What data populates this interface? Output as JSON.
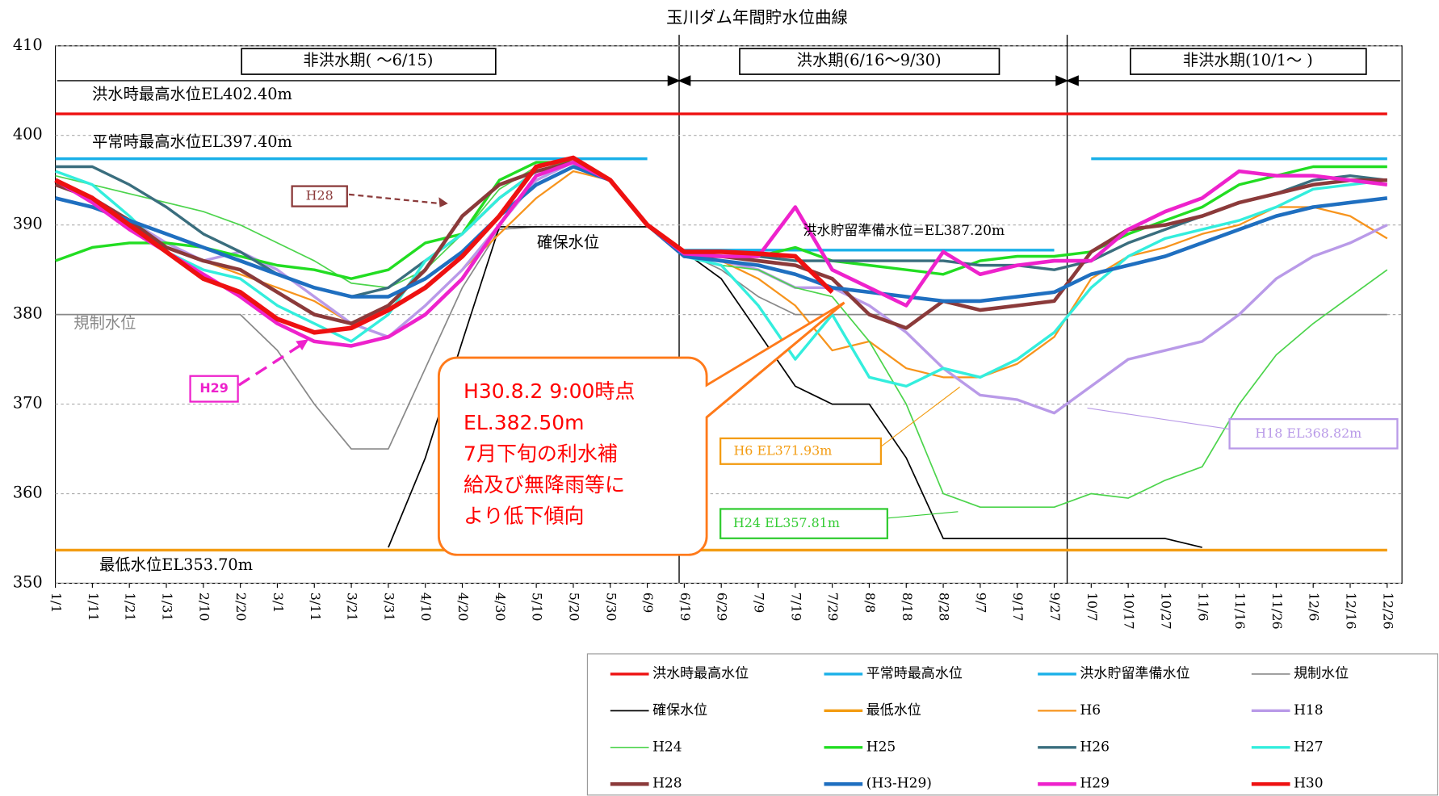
{
  "chart_data": {
    "type": "line",
    "title": "玉川ダム年間貯水位曲線",
    "xlim": [
      0,
      364
    ],
    "ylim": [
      350,
      410
    ],
    "yticks": [
      350,
      360,
      370,
      380,
      390,
      400,
      410
    ],
    "grid": true,
    "xticks": [
      {
        "value": 0,
        "label": "1/1"
      },
      {
        "value": 10,
        "label": "1/11"
      },
      {
        "value": 20,
        "label": "1/21"
      },
      {
        "value": 30,
        "label": "1/31"
      },
      {
        "value": 40,
        "label": "2/10"
      },
      {
        "value": 50,
        "label": "2/20"
      },
      {
        "value": 60,
        "label": "3/1"
      },
      {
        "value": 70,
        "label": "3/11"
      },
      {
        "value": 80,
        "label": "3/21"
      },
      {
        "value": 90,
        "label": "3/31"
      },
      {
        "value": 100,
        "label": "4/10"
      },
      {
        "value": 110,
        "label": "4/20"
      },
      {
        "value": 120,
        "label": "4/30"
      },
      {
        "value": 130,
        "label": "5/10"
      },
      {
        "value": 140,
        "label": "5/20"
      },
      {
        "value": 150,
        "label": "5/30"
      },
      {
        "value": 160,
        "label": "6/9"
      },
      {
        "value": 170,
        "label": "6/19"
      },
      {
        "value": 180,
        "label": "6/29"
      },
      {
        "value": 190,
        "label": "7/9"
      },
      {
        "value": 200,
        "label": "7/19"
      },
      {
        "value": 210,
        "label": "7/29"
      },
      {
        "value": 220,
        "label": "8/8"
      },
      {
        "value": 230,
        "label": "8/18"
      },
      {
        "value": 240,
        "label": "8/28"
      },
      {
        "value": 250,
        "label": "9/7"
      },
      {
        "value": 260,
        "label": "9/17"
      },
      {
        "value": 270,
        "label": "9/27"
      },
      {
        "value": 280,
        "label": "10/7"
      },
      {
        "value": 290,
        "label": "10/17"
      },
      {
        "value": 300,
        "label": "10/27"
      },
      {
        "value": 310,
        "label": "11/6"
      },
      {
        "value": 320,
        "label": "11/16"
      },
      {
        "value": 330,
        "label": "11/26"
      },
      {
        "value": 340,
        "label": "12/6"
      },
      {
        "value": 350,
        "label": "12/16"
      },
      {
        "value": 360,
        "label": "12/26"
      }
    ],
    "x": [
      0,
      10,
      20,
      30,
      40,
      50,
      60,
      70,
      80,
      90,
      100,
      110,
      120,
      130,
      140,
      150,
      160,
      170,
      180,
      190,
      200,
      210,
      220,
      230,
      240,
      250,
      260,
      270,
      280,
      290,
      300,
      310,
      320,
      330,
      340,
      350,
      360
    ],
    "series": [
      {
        "name": "洪水時最高水位",
        "color": "#ee1111",
        "width": 3,
        "values": [
          402.4,
          402.4,
          402.4,
          402.4,
          402.4,
          402.4,
          402.4,
          402.4,
          402.4,
          402.4,
          402.4,
          402.4,
          402.4,
          402.4,
          402.4,
          402.4,
          402.4,
          402.4,
          402.4,
          402.4,
          402.4,
          402.4,
          402.4,
          402.4,
          402.4,
          402.4,
          402.4,
          402.4,
          402.4,
          402.4,
          402.4,
          402.4,
          402.4,
          402.4,
          402.4,
          402.4,
          402.4
        ]
      },
      {
        "name": "平常時最高水位",
        "color": "#1ab0e8",
        "width": 3,
        "values": [
          397.4,
          397.4,
          397.4,
          397.4,
          397.4,
          397.4,
          397.4,
          397.4,
          397.4,
          397.4,
          397.4,
          397.4,
          397.4,
          397.4,
          397.4,
          397.4,
          397.4,
          null,
          null,
          null,
          null,
          null,
          null,
          null,
          null,
          null,
          null,
          null,
          397.4,
          397.4,
          397.4,
          397.4,
          397.4,
          397.4,
          397.4,
          397.4,
          397.4
        ]
      },
      {
        "name": "洪水貯留準備水位",
        "color": "#1ab0e8",
        "width": 3,
        "values": [
          null,
          null,
          null,
          null,
          null,
          null,
          null,
          null,
          null,
          null,
          null,
          null,
          null,
          null,
          null,
          null,
          null,
          387.2,
          387.2,
          387.2,
          387.2,
          387.2,
          387.2,
          387.2,
          387.2,
          387.2,
          387.2,
          387.2,
          null,
          null,
          null,
          null,
          null,
          null,
          null,
          null,
          null
        ]
      },
      {
        "name": "規制水位",
        "color": "#888888",
        "width": 1.5,
        "values": [
          380,
          380,
          380,
          380,
          380,
          380,
          376,
          370,
          365,
          365,
          374,
          383,
          389.5,
          389.8,
          389.8,
          389.8,
          389.8,
          387,
          385,
          382,
          380,
          380,
          380,
          380,
          380,
          380,
          380,
          380,
          380,
          380,
          380,
          380,
          380,
          380,
          380,
          380,
          380
        ]
      },
      {
        "name": "確保水位",
        "color": "#000000",
        "width": 1.5,
        "values": [
          null,
          null,
          null,
          null,
          null,
          null,
          null,
          null,
          null,
          354,
          364,
          377,
          389.8,
          389.8,
          389.8,
          389.8,
          389.8,
          387,
          384,
          378,
          372,
          370,
          370,
          364,
          355,
          355,
          355,
          355,
          355,
          355,
          355,
          354,
          null,
          null,
          null,
          null,
          null
        ]
      },
      {
        "name": "最低水位",
        "color": "#f39c12",
        "width": 3,
        "values": [
          353.7,
          353.7,
          353.7,
          353.7,
          353.7,
          353.7,
          353.7,
          353.7,
          353.7,
          353.7,
          353.7,
          353.7,
          353.7,
          353.7,
          353.7,
          353.7,
          353.7,
          353.7,
          353.7,
          353.7,
          353.7,
          353.7,
          353.7,
          353.7,
          353.7,
          353.7,
          353.7,
          353.7,
          353.7,
          353.7,
          353.7,
          353.7,
          353.7,
          353.7,
          353.7,
          353.7,
          353.7
        ]
      },
      {
        "name": "H6",
        "color": "#f7941d",
        "width": 2,
        "values": [
          394.5,
          393,
          390.5,
          388,
          386,
          384.5,
          383,
          381.5,
          379,
          377.5,
          381,
          385,
          389,
          393,
          396,
          395,
          390,
          386.5,
          386,
          384,
          381,
          376,
          377,
          374,
          373,
          373,
          374.5,
          377.5,
          384,
          386.5,
          387.5,
          389,
          390,
          392,
          392,
          391,
          388.5
        ]
      },
      {
        "name": "H18",
        "color": "#b99ae8",
        "width": 3,
        "values": [
          394.5,
          393,
          390.5,
          388,
          386,
          387,
          385,
          382,
          379,
          377.5,
          381,
          385,
          390,
          395,
          397,
          395,
          390,
          386.5,
          386,
          385,
          383,
          383,
          381,
          378,
          374,
          371,
          370.5,
          369,
          372,
          375,
          376,
          377,
          380,
          384,
          386.5,
          388,
          390
        ]
      },
      {
        "name": "H24",
        "color": "#4cd44c",
        "width": 1.5,
        "values": [
          395.5,
          394.5,
          393.5,
          392.5,
          391.5,
          390,
          388,
          386,
          383.5,
          383,
          385,
          389,
          394,
          396.5,
          397,
          395,
          390,
          386.5,
          385.5,
          385,
          383,
          382,
          377,
          370,
          360,
          358.5,
          358.5,
          358.5,
          360,
          359.5,
          361.5,
          363,
          370,
          375.5,
          379,
          382,
          385
        ]
      },
      {
        "name": "H25",
        "color": "#22dd22",
        "width": 3,
        "values": [
          386,
          387.5,
          388,
          388,
          387.5,
          386.5,
          385.5,
          385,
          384,
          385,
          388,
          389,
          395,
          397,
          397,
          395,
          390,
          386.8,
          386.5,
          386.5,
          387.5,
          386,
          385.5,
          385,
          384.5,
          386,
          386.5,
          386.5,
          387,
          389,
          390.5,
          392,
          394.5,
          395.5,
          396.5,
          396.5,
          396.5
        ]
      },
      {
        "name": "H26",
        "color": "#3a6e7e",
        "width": 3,
        "values": [
          396.5,
          396.5,
          394.5,
          392,
          389,
          387,
          384.5,
          383,
          382,
          383,
          386,
          389,
          393,
          396,
          397,
          395,
          390,
          387,
          386.5,
          386.5,
          386,
          386,
          386,
          386,
          386,
          385.5,
          385.5,
          385,
          386,
          388,
          389.5,
          391,
          392.5,
          393.5,
          395,
          395.5,
          395
        ]
      },
      {
        "name": "H27",
        "color": "#33eedd",
        "width": 3,
        "values": [
          396,
          394.5,
          391,
          387,
          385,
          384,
          381,
          379,
          377,
          380,
          386,
          389,
          393,
          396,
          397,
          395,
          390,
          386.5,
          385.5,
          381,
          375,
          380,
          373,
          372,
          374,
          373,
          375,
          378,
          383,
          386.5,
          388.5,
          389.5,
          390.5,
          392,
          394,
          394.5,
          395
        ]
      },
      {
        "name": "H28",
        "color": "#8b3a3a",
        "width": 4,
        "values": [
          394.5,
          393,
          390.5,
          387.5,
          386,
          385,
          382.5,
          380,
          379,
          381,
          385,
          391,
          394.5,
          396,
          397,
          395,
          390,
          386.5,
          386.5,
          386,
          385.5,
          384,
          380,
          378.5,
          381.5,
          380.5,
          381,
          381.5,
          387,
          389.5,
          390,
          391,
          392.5,
          393.5,
          394.5,
          395,
          395
        ]
      },
      {
        "name": "(H3-H29)",
        "color": "#1f6fc0",
        "width": 4,
        "values": [
          393,
          392,
          390.5,
          389,
          387.5,
          386,
          384.5,
          383,
          382,
          382,
          384,
          387,
          391,
          394.5,
          396.5,
          395,
          390,
          386.5,
          386,
          385.5,
          384.5,
          383,
          382.5,
          382,
          381.5,
          381.5,
          382,
          382.5,
          384.5,
          385.5,
          386.5,
          388,
          389.5,
          391,
          392,
          392.5,
          393
        ]
      },
      {
        "name": "H29",
        "color": "#ee22cc",
        "width": 4,
        "values": [
          395,
          392.5,
          389.5,
          387,
          384.5,
          382,
          379,
          377,
          376.5,
          377.5,
          380,
          384,
          390,
          395.5,
          397,
          395,
          390,
          386.8,
          386.5,
          386.5,
          392,
          385,
          383,
          381,
          387,
          384.5,
          385.5,
          386,
          386,
          389.5,
          391.5,
          393,
          396,
          395.5,
          395.5,
          395,
          394.5
        ]
      },
      {
        "name": "H30",
        "color": "#ee1111",
        "width": 5,
        "values": [
          395,
          393,
          390,
          387,
          384,
          382.5,
          379.5,
          378,
          378.5,
          380.5,
          383,
          386.5,
          391,
          396.5,
          397.5,
          395,
          390,
          387,
          387,
          386.8,
          386.5,
          382.5,
          null,
          null,
          null,
          null,
          null,
          null,
          null,
          null,
          null,
          null,
          null,
          null,
          null,
          null,
          null
        ]
      }
    ],
    "annotations": [
      {
        "text": "非洪水期( ～6/15)",
        "color": "#000000"
      },
      {
        "text": "洪水期(6/16～9/30)",
        "color": "#000000"
      },
      {
        "text": "非洪水期(10/1～ )",
        "color": "#000000"
      },
      {
        "text": "洪水時最高水位EL402.40m",
        "color": "#000000"
      },
      {
        "text": "平常時最高水位EL397.40m",
        "color": "#000000"
      },
      {
        "text": "洪水貯留準備水位=EL387.20m",
        "color": "#000000"
      },
      {
        "text": "確保水位",
        "color": "#000000"
      },
      {
        "text": "規制水位",
        "color": "#888888"
      },
      {
        "text": "最低水位EL353.70m",
        "color": "#000000"
      },
      {
        "text": "H28",
        "color": "#8b3a3a"
      },
      {
        "text": "H29",
        "color": "#ee22cc"
      },
      {
        "text": "H6 EL371.93m",
        "color": "#f39c12"
      },
      {
        "text": "H24 EL357.81m",
        "color": "#33cc33"
      },
      {
        "text": "H18 EL368.82m",
        "color": "#b99ae8"
      }
    ],
    "callout": {
      "color": "#ff0000",
      "lines": [
        "H30.8.2 9:00時点",
        "EL.382.50m",
        "7月下旬の利水補",
        "給及び無降雨等に",
        "より低下傾向"
      ]
    },
    "legend": {
      "position": "bottom-right",
      "columns": 4
    }
  }
}
